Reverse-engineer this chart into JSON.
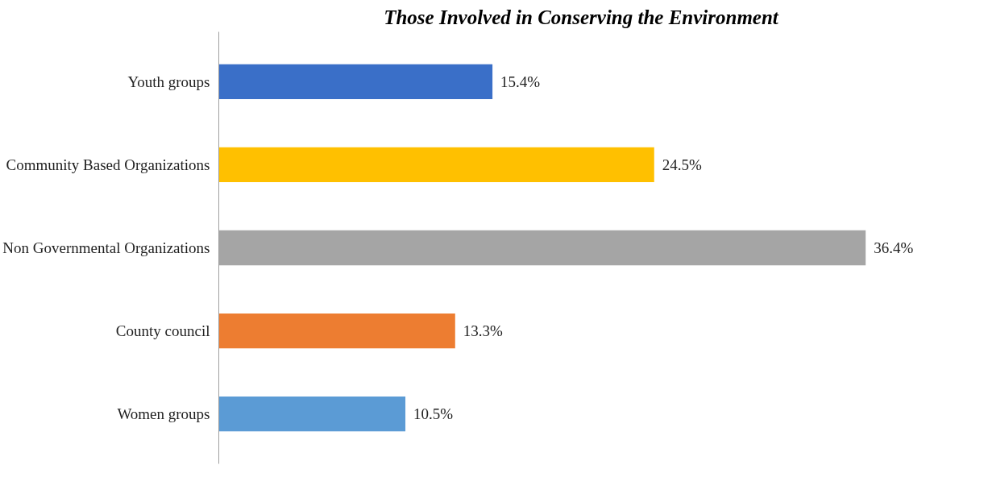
{
  "chart_data": {
    "type": "bar",
    "orientation": "horizontal",
    "title": "Those Involved in Conserving the Environment",
    "categories": [
      "Youth groups",
      "Community Based Organizations",
      "Non Governmental Organizations",
      "County council",
      "Women groups"
    ],
    "values": [
      15.4,
      24.5,
      36.4,
      13.3,
      10.5
    ],
    "colors": [
      "#3a6fc8",
      "#ffc000",
      "#a5a5a5",
      "#ed7d31",
      "#5b9bd5"
    ],
    "value_labels": [
      "15.4%",
      "24.5%",
      "36.4%",
      "13.3%",
      "10.5%"
    ],
    "grid": false
  }
}
